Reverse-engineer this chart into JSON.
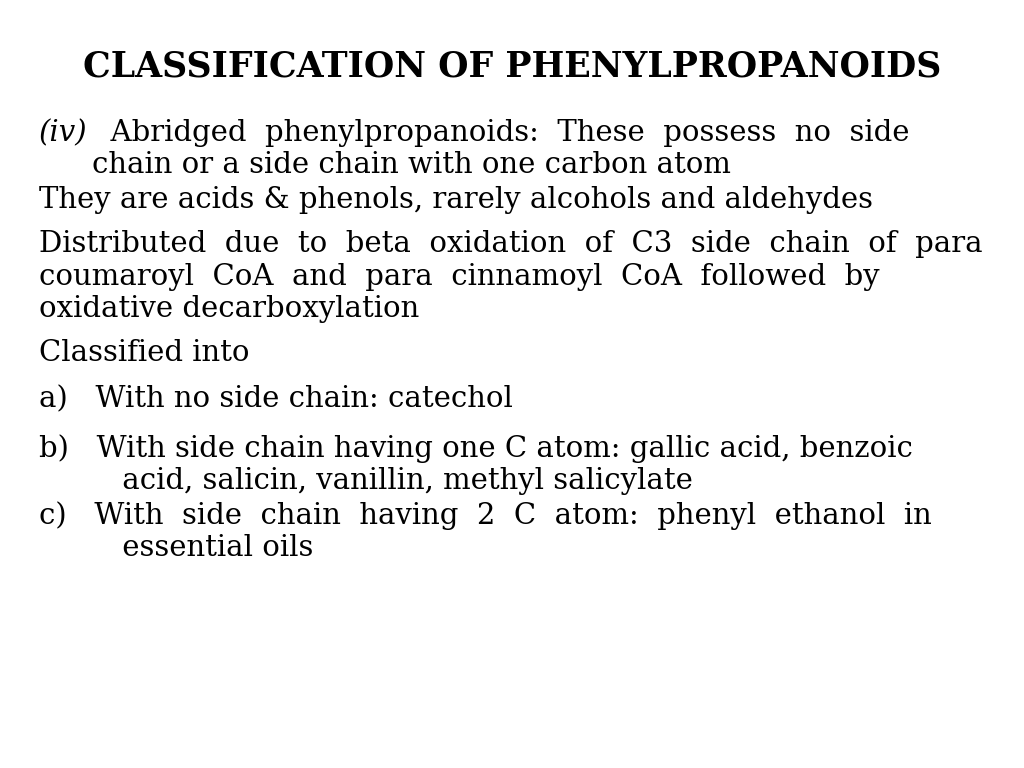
{
  "title": "CLASSIFICATION OF PHENYLPROPANOIDS",
  "background_color": "#ffffff",
  "text_color": "#000000",
  "title_fontsize": 25,
  "body_fontsize": 21,
  "font_family": "DejaVu Serif"
}
